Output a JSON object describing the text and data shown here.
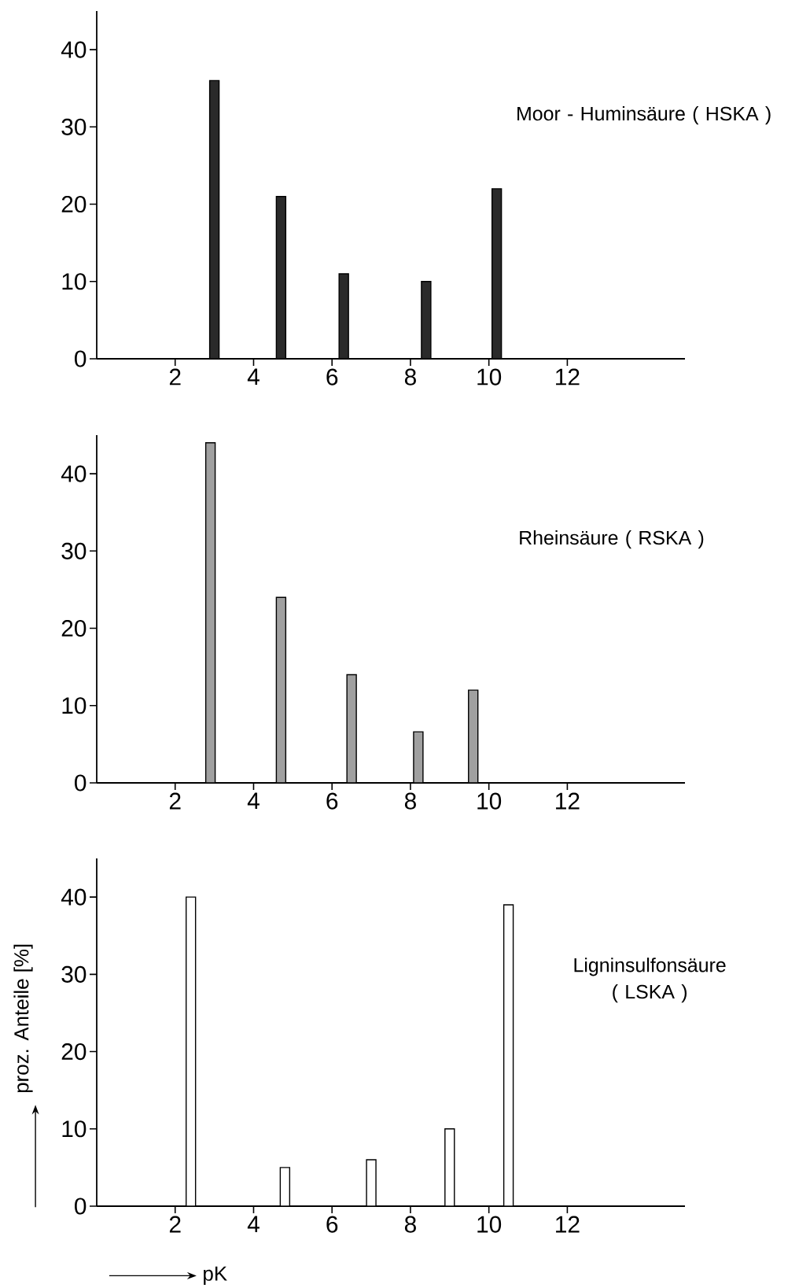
{
  "chart_data": [
    {
      "type": "bar",
      "title": "Moor - Huminsäure ( HSKA )",
      "x": [
        3.0,
        4.7,
        6.3,
        8.4,
        10.2
      ],
      "values": [
        36,
        21,
        11,
        10,
        22
      ],
      "color": "#2a2a2a",
      "xlim": [
        0,
        15
      ],
      "ylim": [
        0,
        45
      ],
      "xticks": [
        2,
        4,
        6,
        8,
        10,
        12
      ],
      "yticks": [
        0,
        10,
        20,
        30,
        40
      ]
    },
    {
      "type": "bar",
      "title": "Rheinsäure ( RSKA )",
      "x": [
        2.9,
        4.7,
        6.5,
        8.2,
        9.6
      ],
      "values": [
        44,
        24,
        14,
        6.6,
        12
      ],
      "color": "#a0a0a0",
      "xlim": [
        0,
        15
      ],
      "ylim": [
        0,
        45
      ],
      "xticks": [
        2,
        4,
        6,
        8,
        10,
        12
      ],
      "yticks": [
        0,
        10,
        20,
        30,
        40
      ]
    },
    {
      "type": "bar",
      "title": "Ligninsulfonsäure ( LSKA )",
      "xlabel": "pK",
      "ylabel": "proz. Anteile [%]",
      "x": [
        2.4,
        4.8,
        7.0,
        9.0,
        10.5
      ],
      "values": [
        40,
        5,
        6,
        10,
        39
      ],
      "color": "#ffffff",
      "xlim": [
        0,
        15
      ],
      "ylim": [
        0,
        45
      ],
      "xticks": [
        2,
        4,
        6,
        8,
        10,
        12
      ],
      "yticks": [
        0,
        10,
        20,
        30,
        40
      ]
    }
  ]
}
